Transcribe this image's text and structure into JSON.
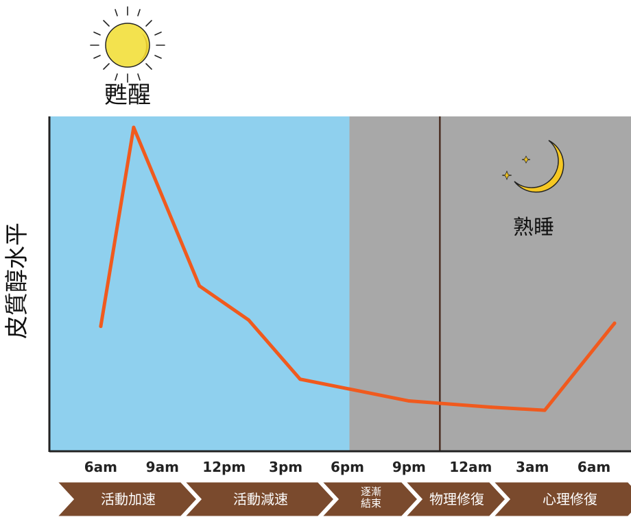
{
  "chart_data": {
    "type": "line",
    "title": "",
    "xlabel": "",
    "ylabel": "皮質醇水平",
    "x": [
      "6am",
      "9am",
      "12pm",
      "3pm",
      "6pm",
      "9pm",
      "12am",
      "3am",
      "6am"
    ],
    "series": [
      {
        "points": [
          {
            "t": 0.0,
            "y": 0.36
          },
          {
            "t": 1.6,
            "y": 1.0
          },
          {
            "t": 4.8,
            "y": 0.49
          },
          {
            "t": 7.2,
            "y": 0.38
          },
          {
            "t": 9.7,
            "y": 0.19
          },
          {
            "t": 15.0,
            "y": 0.12
          },
          {
            "t": 19.0,
            "y": 0.1
          },
          {
            "t": 21.6,
            "y": 0.09
          },
          {
            "t": 25.0,
            "y": 0.37
          }
        ]
      }
    ],
    "xlim_hours": [
      -2.5,
      25.8
    ],
    "ylim": [
      0,
      1.05
    ],
    "regions": [
      {
        "name": "awake",
        "from_hours": -2.5,
        "to_hours": 12.1,
        "color": "#8fd0ee"
      },
      {
        "name": "asleep",
        "from_hours": 12.1,
        "to_hours": 25.8,
        "color": "#a8a8a8"
      }
    ],
    "divider_hours": 16.5,
    "line_color": "#f05a1e",
    "annotations": {
      "wake": "甦醒",
      "sleep": "熟睡"
    }
  },
  "phases": [
    {
      "lines": [
        "活動加速"
      ]
    },
    {
      "lines": [
        "活動減速"
      ]
    },
    {
      "lines": [
        "逐漸",
        "結束"
      ]
    },
    {
      "lines": [
        "物理修復"
      ]
    },
    {
      "lines": [
        "心理修復"
      ]
    }
  ],
  "colors": {
    "phase_bar": "#7a4a2d",
    "sun": "#f3e24e",
    "moon": "#f6c823",
    "axis": "#222222",
    "divider": "#4a2e22"
  },
  "icons": {
    "sun": "sun-icon",
    "moon": "crescent-moon-icon"
  }
}
